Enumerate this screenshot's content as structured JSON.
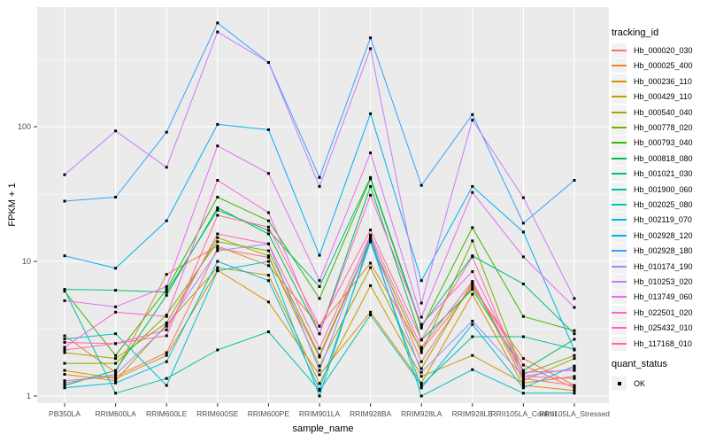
{
  "figure": {
    "background": "#FFFFFF",
    "panel_background": "#EBEBEB",
    "grid_color": "#FFFFFF",
    "tick_label_color": "#4D4D4D",
    "tick_mark_color": "#333333",
    "point_color": "#000000"
  },
  "axes": {
    "x_title": "sample_name",
    "y_title": "FPKM + 1",
    "y_tick_labels": [
      "1",
      "10",
      "100"
    ]
  },
  "legend": {
    "tracking_title": "tracking_id",
    "quant_title": "quant_status",
    "quant_item_label": "OK"
  },
  "chart_data": {
    "type": "line",
    "title": "",
    "xlabel": "sample_name",
    "ylabel": "FPKM + 1",
    "x_type": "categorical",
    "y_scale": "log10",
    "ylim": [
      1,
      700
    ],
    "y_major_ticks": [
      1,
      10,
      100
    ],
    "y_minor_ticks": [
      3.1623,
      31.623,
      316.23
    ],
    "grid": true,
    "legend_position": "right",
    "marker": {
      "shape": "square",
      "size": 3,
      "color": "#000000",
      "status": "OK"
    },
    "categories": [
      "PB350LA",
      "RRIM600LA",
      "RRIM600LE",
      "RRIM600SE",
      "RRIM600PE",
      "RRIM901LA",
      "RRIM928BA",
      "RRIM928LA",
      "RRIM928LE",
      "RRII105LA_Control",
      "RRII105LA_Stressed"
    ],
    "series": [
      {
        "name": "Hb_000020_030",
        "color": "#F8766D",
        "values": [
          1.3,
          1.4,
          2.1,
          12.5,
          10.7,
          1.95,
          14.0,
          1.8,
          6.7,
          1.7,
          1.15
        ]
      },
      {
        "name": "Hb_000025_400",
        "color": "#EA8331",
        "values": [
          2.8,
          1.5,
          8.0,
          13.0,
          9.3,
          3.3,
          9.7,
          2.2,
          6.4,
          1.9,
          1.2
        ]
      },
      {
        "name": "Hb_000236_110",
        "color": "#D89000",
        "values": [
          1.55,
          1.35,
          2.0,
          8.6,
          5.0,
          1.44,
          4.2,
          1.25,
          5.7,
          1.2,
          1.1
        ]
      },
      {
        "name": "Hb_000429_110",
        "color": "#C09B00",
        "values": [
          1.45,
          1.3,
          3.4,
          9.0,
          7.9,
          1.24,
          6.6,
          1.4,
          2.0,
          1.25,
          1.4
        ]
      },
      {
        "name": "Hb_000540_040",
        "color": "#A3A500",
        "values": [
          2.1,
          1.9,
          3.5,
          15.0,
          11.0,
          1.67,
          9.0,
          1.6,
          7.0,
          1.3,
          1.9
        ]
      },
      {
        "name": "Hb_000778_020",
        "color": "#7CAE00",
        "values": [
          1.75,
          1.75,
          4.0,
          14.0,
          12.0,
          2.0,
          14.5,
          2.1,
          14.2,
          1.45,
          2.0
        ]
      },
      {
        "name": "Hb_000793_040",
        "color": "#39B600",
        "values": [
          6.0,
          2.0,
          6.2,
          30.0,
          20.0,
          5.3,
          41.0,
          3.2,
          17.8,
          3.9,
          3.06
        ]
      },
      {
        "name": "Hb_000818_080",
        "color": "#00BB4E",
        "values": [
          1.2,
          1.55,
          5.6,
          25.0,
          16.0,
          2.9,
          36.0,
          2.6,
          6.2,
          1.55,
          2.64
        ]
      },
      {
        "name": "Hb_001021_030",
        "color": "#00BF7D",
        "values": [
          6.2,
          6.1,
          5.9,
          24.0,
          17.0,
          6.5,
          42.0,
          3.3,
          11.0,
          6.8,
          2.9
        ]
      },
      {
        "name": "Hb_001900_060",
        "color": "#00C1A3",
        "values": [
          6.1,
          1.05,
          1.35,
          2.2,
          3.0,
          1.1,
          4.0,
          1.2,
          2.76,
          2.76,
          2.23
        ]
      },
      {
        "name": "Hb_002025_080",
        "color": "#00BFC4",
        "values": [
          2.65,
          2.9,
          1.2,
          8.5,
          10.0,
          1.0,
          15.0,
          1.0,
          1.57,
          1.05,
          1.05
        ]
      },
      {
        "name": "Hb_002119_070",
        "color": "#00BAE0",
        "values": [
          1.15,
          1.25,
          1.8,
          10.0,
          7.2,
          1.12,
          14.0,
          1.15,
          3.4,
          1.15,
          1.67
        ]
      },
      {
        "name": "Hb_002928_120",
        "color": "#00B0F6",
        "values": [
          11.0,
          8.9,
          20.0,
          104.0,
          95.0,
          11.1,
          125.0,
          7.2,
          36.0,
          16.5,
          2.2
        ]
      },
      {
        "name": "Hb_002928_180",
        "color": "#35A2FF",
        "values": [
          28.0,
          30.0,
          91.0,
          589.0,
          300.0,
          42.0,
          457.0,
          36.7,
          123.0,
          19.2,
          40.0
        ]
      },
      {
        "name": "Hb_010174_190",
        "color": "#9590FF",
        "values": [
          1.25,
          1.45,
          3.3,
          12.0,
          13.5,
          1.55,
          15.5,
          1.5,
          3.6,
          1.4,
          1.6
        ]
      },
      {
        "name": "Hb_010253_020",
        "color": "#C77CFF",
        "values": [
          44.0,
          93.0,
          50.0,
          505.0,
          300.0,
          36.0,
          380.0,
          4.9,
          112.0,
          29.7,
          5.3
        ]
      },
      {
        "name": "Hb_013749_060",
        "color": "#E76BF3",
        "values": [
          5.1,
          4.6,
          6.5,
          72.0,
          45.0,
          7.2,
          64.0,
          3.85,
          32.5,
          10.8,
          4.55
        ]
      },
      {
        "name": "Hb_022501_020",
        "color": "#FA62DB",
        "values": [
          2.3,
          4.2,
          3.9,
          40.0,
          23.0,
          2.9,
          31.0,
          3.4,
          8.4,
          1.5,
          1.55
        ]
      },
      {
        "name": "Hb_025432_010",
        "color": "#FF62BC",
        "values": [
          2.5,
          2.45,
          3.1,
          16.0,
          13.5,
          2.26,
          15.7,
          2.3,
          7.1,
          1.4,
          1.35
        ]
      },
      {
        "name": "Hb_117168_010",
        "color": "#FF6A98",
        "values": [
          2.2,
          2.45,
          2.8,
          22.0,
          18.0,
          3.3,
          17.1,
          2.63,
          10.8,
          1.35,
          1.2
        ]
      }
    ]
  }
}
